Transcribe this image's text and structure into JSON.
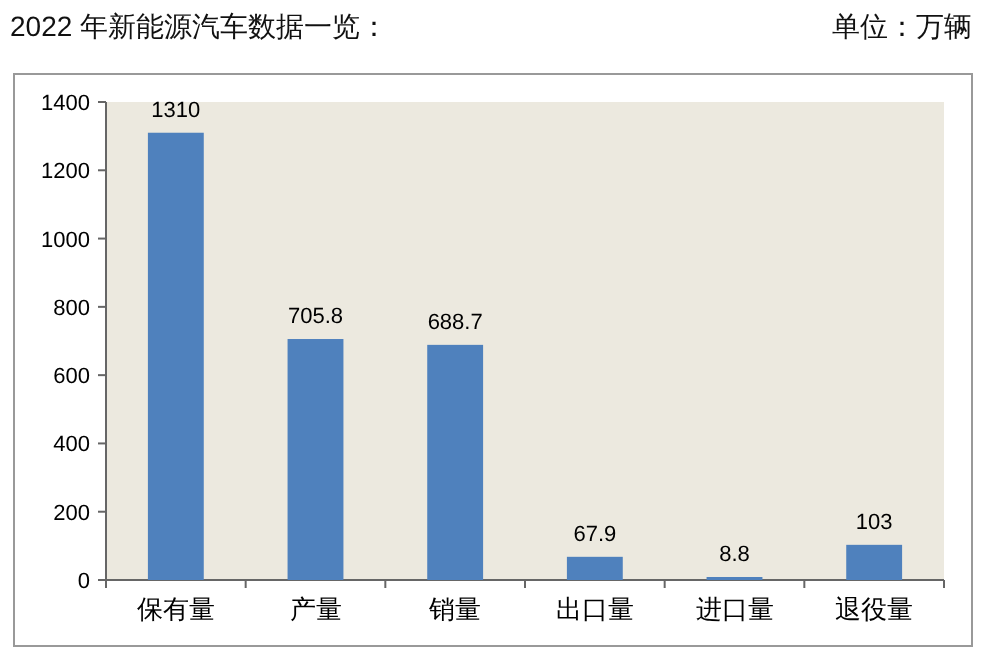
{
  "chart_data": {
    "type": "bar",
    "title": "2022 年新能源汽车数据一览：",
    "annotations": [
      "单位：万辆"
    ],
    "categories": [
      "保有量",
      "产量",
      "销量",
      "出口量",
      "进口量",
      "退役量"
    ],
    "values": [
      1310,
      705.8,
      688.7,
      67.9,
      8.8,
      103
    ],
    "color": "#4f81bd",
    "ylim": [
      0,
      1400
    ],
    "yticks": [
      0,
      200,
      400,
      600,
      800,
      1000,
      1200,
      1400
    ],
    "data_labels": true
  }
}
